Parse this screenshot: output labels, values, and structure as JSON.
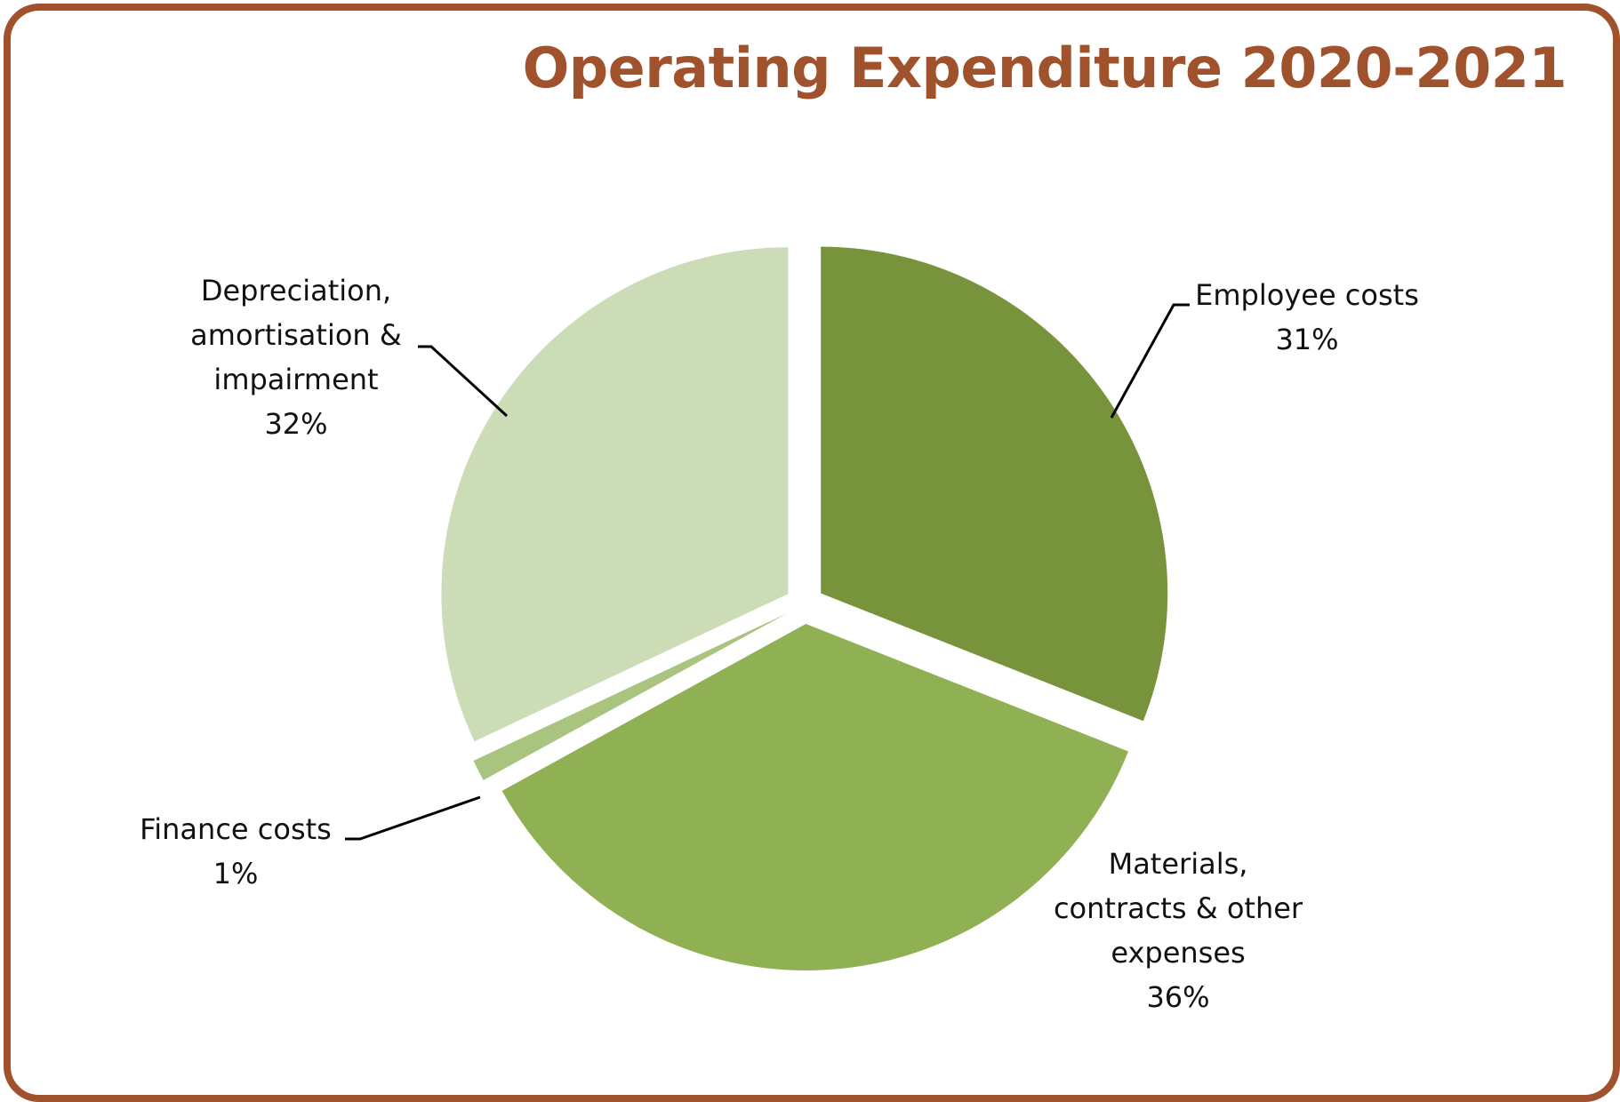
{
  "chart_data": {
    "type": "pie",
    "title": "Operating Expenditure 2020-2021",
    "slices": [
      {
        "name": "Employee costs",
        "value": 31,
        "label": "31%",
        "color": "#77933C"
      },
      {
        "name": "Materials, contracts & other expenses",
        "value": 36,
        "label": "36%",
        "color": "#8FB153"
      },
      {
        "name": "Finance costs",
        "value": 1,
        "label": "1%",
        "color": "#A9C47F"
      },
      {
        "name": "Depreciation, amortisation & impairment",
        "value": 32,
        "label": "32%",
        "color": "#CCDCB7"
      }
    ],
    "start_angle_deg": 0,
    "direction": "clockwise",
    "exploded": true,
    "legend": "none",
    "border_color": "#A0522D",
    "title_color": "#A0522D"
  }
}
